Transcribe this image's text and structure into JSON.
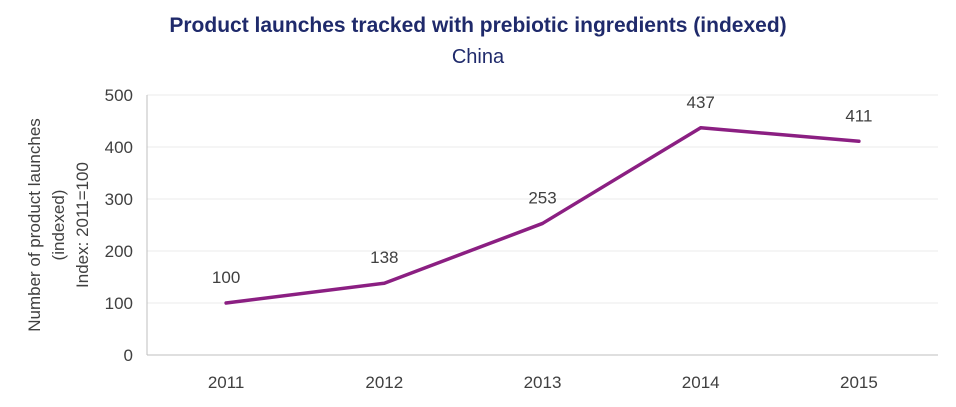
{
  "chart_data": {
    "type": "line",
    "title": "Product launches tracked with prebiotic ingredients (indexed)",
    "subtitle": "China",
    "ylabel_lines": [
      "Number of product launches",
      "(indexed)",
      "Index: 2011=100"
    ],
    "xlabel": "",
    "categories": [
      "2011",
      "2012",
      "2013",
      "2014",
      "2015"
    ],
    "series": [
      {
        "values": [
          100,
          138,
          253,
          437,
          411
        ]
      }
    ],
    "data_labels": [
      "100",
      "138",
      "253",
      "437",
      "411"
    ],
    "yticks": [
      0,
      100,
      200,
      300,
      400,
      500
    ],
    "ytick_labels": [
      "0",
      "100",
      "200",
      "300",
      "400",
      "500"
    ],
    "ylim": [
      0,
      500
    ],
    "grid": true,
    "legend": "none",
    "colors": {
      "line": "#8B1F82",
      "title": "#1F2A6B",
      "grid": "#EBEBEB",
      "axis": "#BFBFBF",
      "text": "#404040"
    }
  }
}
